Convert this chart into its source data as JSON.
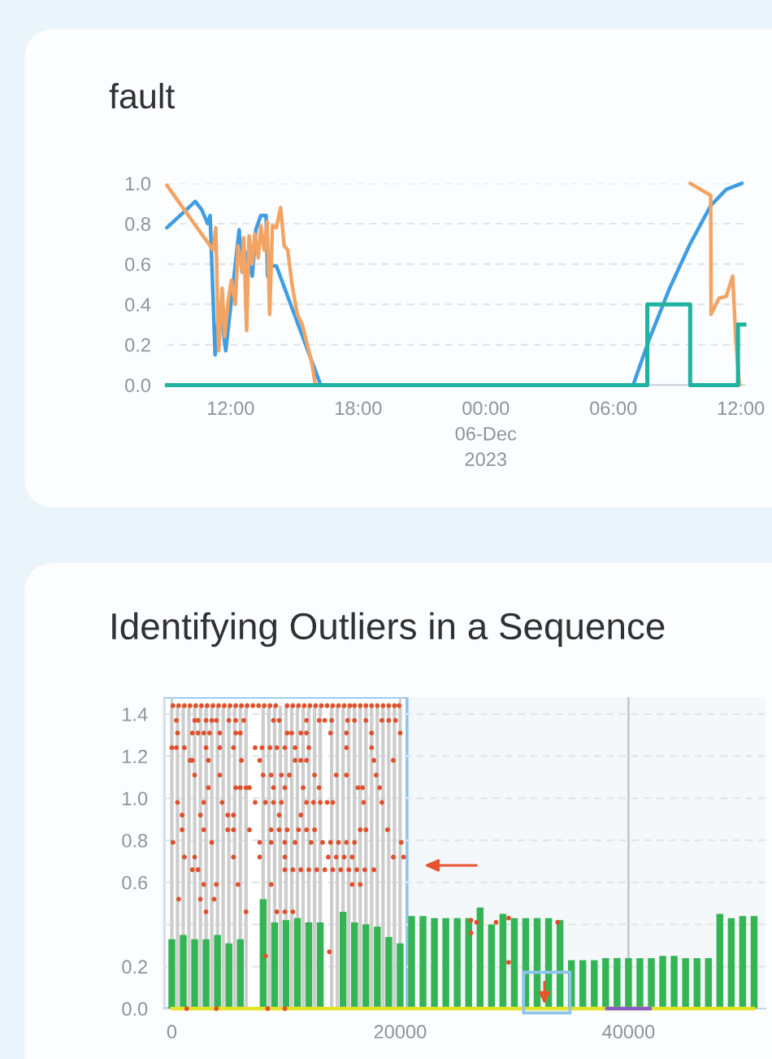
{
  "chart_data": [
    {
      "type": "line",
      "title": "fault",
      "xlim": [
        "2023-12-05T09:00",
        "2023-12-06T12:10"
      ],
      "xticks": [
        {
          "value": "2023-12-05T12:00",
          "label": "12:00"
        },
        {
          "value": "2023-12-05T18:00",
          "label": "18:00"
        },
        {
          "value": "2023-12-06T00:00",
          "label": "00:00\n06-Dec\n2023"
        },
        {
          "value": "2023-12-06T06:00",
          "label": "06:00"
        },
        {
          "value": "2023-12-06T12:00",
          "label": "12:00"
        }
      ],
      "ylim": [
        0,
        1
      ],
      "yticks": [
        {
          "value": 0,
          "label": "0.0"
        },
        {
          "value": 0.2,
          "label": "0.2"
        },
        {
          "value": 0.4,
          "label": "0.4"
        },
        {
          "value": 0.6,
          "label": "0.6"
        },
        {
          "value": 0.8,
          "label": "0.8"
        },
        {
          "value": 1,
          "label": "1.0"
        }
      ],
      "grid": "y",
      "series": [
        {
          "color": "#3e9de3",
          "x": [
            "2023-12-05T09:00",
            "2023-12-05T10:20",
            "2023-12-05T10:38",
            "2023-12-05T10:55",
            "2023-12-05T11:02",
            "2023-12-05T11:16",
            "2023-12-05T11:29",
            "2023-12-05T11:46",
            "2023-12-05T12:24",
            "2023-12-05T12:32",
            "2023-12-05T12:41",
            "2023-12-05T13:01",
            "2023-12-05T13:11",
            "2023-12-05T13:25",
            "2023-12-05T13:40",
            "2023-12-05T13:44",
            "2023-12-05T13:52",
            "2023-12-05T14:09",
            "2023-12-05T16:14",
            "2023-12-06T06:56",
            "2023-12-06T07:40",
            "2023-12-06T08:39",
            "2023-12-06T09:37",
            "2023-12-06T10:35",
            "2023-12-06T11:19",
            "2023-12-06T12:03"
          ],
          "values": [
            0.78,
            0.91,
            0.87,
            0.8,
            0.84,
            0.15,
            0.4,
            0.17,
            0.77,
            0.56,
            0.66,
            0.54,
            0.77,
            0.84,
            0.84,
            0.54,
            0.59,
            0.59,
            0,
            0,
            0.22,
            0.48,
            0.7,
            0.89,
            0.97,
            1.0
          ]
        },
        {
          "color": "#f3a464",
          "x": [
            "2023-12-05T09:00",
            "2023-12-05T11:10",
            "2023-12-05T11:18",
            "2023-12-05T11:26",
            "2023-12-05T11:36",
            "2023-12-05T11:43",
            "2023-12-05T11:53",
            "2023-12-05T12:02",
            "2023-12-05T12:13",
            "2023-12-05T12:21",
            "2023-12-05T12:32",
            "2023-12-05T12:37",
            "2023-12-05T12:45",
            "2023-12-05T12:52",
            "2023-12-05T13:01",
            "2023-12-05T13:08",
            "2023-12-05T13:18",
            "2023-12-05T13:25",
            "2023-12-05T13:34",
            "2023-12-05T13:43",
            "2023-12-05T13:50",
            "2023-12-05T13:58",
            "2023-12-05T14:09",
            "2023-12-05T14:21",
            "2023-12-05T14:31",
            "2023-12-05T14:41",
            "2023-12-05T14:53",
            "2023-12-05T15:08",
            "2023-12-05T15:22",
            "2023-12-05T15:49",
            "2023-12-05T15:59",
            "2023-12-06T00:00",
            "2023-12-06T09:37",
            "2023-12-06T10:35",
            "2023-12-06T10:36",
            "2023-12-06T10:58",
            "2023-12-06T11:19",
            "2023-12-06T11:37",
            "2023-12-06T11:46",
            "2023-12-06T11:56"
          ],
          "values": [
            0.99,
            0.67,
            0.78,
            0.17,
            0.48,
            0.24,
            0.42,
            0.52,
            0.4,
            0.69,
            0.56,
            0.73,
            0.27,
            0.74,
            0.6,
            0.75,
            0.63,
            0.79,
            0.67,
            0.81,
            0.35,
            0.79,
            0.78,
            0.88,
            0.69,
            0.67,
            0.5,
            0.35,
            0.3,
            0.11,
            0,
            null,
            1.0,
            0.94,
            0.35,
            0.43,
            0.44,
            0.54,
            0.22,
            0
          ]
        },
        {
          "type": "step",
          "color": "#1db3a0",
          "x": [
            "2023-12-05T09:00",
            "2023-12-06T07:36",
            "2023-12-06T09:37",
            "2023-12-06T11:52",
            "2023-12-06T12:10"
          ],
          "values": [
            0,
            0.4,
            0,
            0.3,
            0.3
          ]
        }
      ]
    },
    {
      "type": "line",
      "title": "Identifying Outliers in a Sequence",
      "xlim": [
        -700,
        52000
      ],
      "xticks": [
        0,
        20000,
        40000
      ],
      "ylim": [
        0,
        1.48
      ],
      "yticks": [
        {
          "value": 0,
          "label": "0.0"
        },
        {
          "value": 0.2,
          "label": "0.2"
        },
        {
          "value": 0.4,
          "label": null
        },
        {
          "value": 0.6,
          "label": "0.6"
        },
        {
          "value": 0.8,
          "label": "0.8"
        },
        {
          "value": 1.0,
          "label": "1.0"
        },
        {
          "value": 1.2,
          "label": "1.2"
        },
        {
          "value": 1.4,
          "label": "1.4"
        }
      ],
      "grid": true,
      "bands": [
        {
          "axis": "x",
          "from": -700,
          "to": 20600,
          "color": "#8fc4ec"
        }
      ],
      "series": [
        {
          "type": "bar",
          "color": "#cdcdcd",
          "x": [
            0,
            500,
            1000,
            1500,
            2000,
            2500,
            3000,
            3500,
            4000,
            4500,
            5000,
            5500,
            6000,
            6500,
            7000,
            7500,
            8000,
            8500,
            9000,
            9500,
            10000,
            10500,
            11000,
            11500,
            12000,
            12500,
            13000,
            13500,
            14000,
            14500,
            15000,
            15500,
            16000,
            16500,
            17000,
            17500,
            18000,
            18500,
            19000,
            19500,
            20000
          ],
          "values": [
            1.44,
            1.44,
            1.44,
            1.44,
            1.44,
            1.44,
            1.44,
            1.44,
            1.44,
            1.44,
            1.44,
            1.44,
            1.44,
            1.44,
            null,
            null,
            1.44,
            1.44,
            1.44,
            1.44,
            1.44,
            1.44,
            1.44,
            1.44,
            1.44,
            1.44,
            1.44,
            null,
            1.44,
            1.44,
            1.44,
            1.44,
            1.44,
            1.44,
            1.44,
            1.44,
            1.44,
            1.44,
            1.44,
            1.44,
            1.44
          ]
        },
        {
          "type": "bar",
          "color": "#34b554",
          "x": [
            0,
            1000,
            2000,
            3000,
            4000,
            5000,
            6000,
            7000,
            8000,
            9000,
            10000,
            11000,
            12000,
            13000,
            14000,
            15000,
            16000,
            17000,
            18000,
            19000,
            20000,
            21000,
            22000,
            23000,
            24000,
            25000,
            26000,
            27000,
            28000,
            29000,
            30000,
            31000,
            32000,
            33000,
            34000,
            35000,
            36000,
            37000,
            38000,
            39000,
            40000,
            41000,
            42000,
            43000,
            44000,
            45000,
            46000,
            47000,
            48000,
            49000,
            50000,
            51000
          ],
          "values": [
            0.33,
            0.35,
            0.33,
            0.33,
            0.35,
            0.31,
            0.33,
            null,
            0.52,
            0.41,
            0.42,
            0.43,
            0.41,
            0.41,
            null,
            0.46,
            0.41,
            0.4,
            0.39,
            0.34,
            0.31,
            0.44,
            0.44,
            0.43,
            0.43,
            0.43,
            0.43,
            0.48,
            0.4,
            0.45,
            0.43,
            0.43,
            0.43,
            0.43,
            0.42,
            0.23,
            0.23,
            0.23,
            0.24,
            0.24,
            0.24,
            0.24,
            0.24,
            0.25,
            0.25,
            0.24,
            0.24,
            0.24,
            0.45,
            0.43,
            0.44,
            0.44
          ]
        },
        {
          "color": "#e4e42a",
          "x": [
            0,
            51000
          ],
          "values": [
            0,
            0
          ]
        },
        {
          "color": "#8a5cc8",
          "x": [
            38100,
            41900
          ],
          "values": [
            0,
            0
          ]
        },
        {
          "type": "scatter",
          "marker": "circle",
          "color": "#e0502c",
          "x": [
            100,
            600,
            1100,
            1600,
            2100,
            2600,
            3100,
            3600,
            4100,
            4600,
            5100,
            5600,
            6100,
            6600,
            7100,
            7600,
            8100,
            8600,
            9100,
            10100,
            10600,
            11100,
            11600,
            12100,
            12600,
            13100,
            13600,
            14100,
            14600,
            15100,
            15600,
            16000,
            16500,
            17000,
            17500,
            18000,
            18500,
            19000,
            19500,
            19900,
            400,
            2000,
            2300,
            3000,
            3500,
            3900,
            5000,
            5600,
            6300,
            8900,
            9400,
            11800,
            12900,
            13400,
            14000,
            15400,
            16000,
            17000,
            18400,
            19000,
            19600,
            500,
            1800,
            2300,
            2800,
            3300,
            4200,
            5600,
            6000,
            10100,
            10500,
            11300,
            11800,
            13900,
            15300,
            17500,
            20000,
            0,
            400,
            1100,
            3000,
            4200,
            5400,
            7300,
            7900,
            8600,
            9200,
            9900,
            10800,
            12000,
            15300,
            17500,
            1600,
            1800,
            3200,
            6100,
            7700,
            10800,
            11300,
            11800,
            17700,
            19400,
            2000,
            4200,
            8000,
            8700,
            9600,
            10300,
            12500,
            14400,
            15300,
            17900,
            3200,
            5600,
            6000,
            6500,
            6800,
            8900,
            9900,
            11500,
            12900,
            16300,
            16700,
            18200,
            500,
            2800,
            4400,
            7300,
            8200,
            8900,
            9600,
            11800,
            12400,
            13000,
            13600,
            14100,
            16800,
            18400,
            900,
            2500,
            4900,
            5400,
            9400,
            11300,
            900,
            2800,
            4900,
            5400,
            6800,
            8700,
            9400,
            10100,
            11100,
            11800,
            12500,
            16500,
            17000,
            18900,
            100,
            3500,
            7700,
            8700,
            9900,
            10800,
            12200,
            13200,
            13900,
            14600,
            15300,
            16000,
            20100,
            1100,
            2000,
            5400,
            7700,
            9900,
            13700,
            14400,
            15100,
            15800,
            19400,
            20300,
            1800,
            2300,
            9900,
            10600,
            11300,
            12000,
            12700,
            13400,
            14100,
            14800,
            15500,
            16200,
            16900,
            17700,
            2800,
            3900,
            5800,
            8700,
            15800,
            16500,
            600,
            2500,
            3700,
            3000,
            6500,
            9200,
            9900,
            10600,
            13800,
            8200,
            1300,
            3900,
            8400,
            9900,
            26200,
            26200,
            26700,
            28400,
            29500,
            29500,
            33800
          ],
          "values": [
            1.44,
            1.44,
            1.44,
            1.44,
            1.44,
            1.44,
            1.44,
            1.44,
            1.44,
            1.44,
            1.44,
            1.44,
            1.44,
            1.44,
            1.44,
            1.44,
            1.44,
            1.44,
            1.44,
            1.44,
            1.44,
            1.44,
            1.44,
            1.44,
            1.44,
            1.44,
            1.44,
            1.44,
            1.44,
            1.44,
            1.44,
            1.44,
            1.44,
            1.44,
            1.44,
            1.44,
            1.44,
            1.44,
            1.44,
            1.44,
            1.37,
            1.37,
            1.37,
            1.37,
            1.37,
            1.37,
            1.37,
            1.37,
            1.37,
            1.37,
            1.37,
            1.37,
            1.37,
            1.37,
            1.37,
            1.37,
            1.37,
            1.37,
            1.37,
            1.37,
            1.37,
            1.31,
            1.31,
            1.31,
            1.31,
            1.31,
            1.31,
            1.31,
            1.31,
            1.31,
            1.31,
            1.31,
            1.31,
            1.31,
            1.31,
            1.31,
            1.31,
            1.24,
            1.24,
            1.24,
            1.24,
            1.24,
            1.24,
            1.24,
            1.24,
            1.24,
            1.24,
            1.24,
            1.24,
            1.24,
            1.24,
            1.24,
            1.18,
            1.18,
            1.18,
            1.18,
            1.18,
            1.18,
            1.18,
            1.18,
            1.18,
            1.18,
            1.11,
            1.11,
            1.11,
            1.11,
            1.11,
            1.11,
            1.11,
            1.11,
            1.11,
            1.11,
            1.05,
            1.05,
            1.05,
            1.05,
            1.05,
            1.05,
            1.05,
            1.05,
            1.05,
            1.05,
            1.05,
            1.05,
            0.98,
            0.98,
            0.98,
            0.98,
            0.98,
            0.98,
            0.98,
            0.98,
            0.98,
            0.98,
            0.98,
            0.98,
            0.98,
            0.98,
            0.92,
            0.92,
            0.92,
            0.92,
            0.92,
            0.92,
            0.85,
            0.85,
            0.85,
            0.85,
            0.85,
            0.85,
            0.85,
            0.85,
            0.85,
            0.85,
            0.85,
            0.85,
            0.85,
            0.85,
            0.79,
            0.79,
            0.79,
            0.79,
            0.79,
            0.79,
            0.79,
            0.79,
            0.79,
            0.79,
            0.79,
            0.79,
            0.79,
            0.72,
            0.72,
            0.72,
            0.72,
            0.72,
            0.72,
            0.72,
            0.72,
            0.72,
            0.72,
            0.72,
            0.66,
            0.66,
            0.66,
            0.66,
            0.66,
            0.66,
            0.66,
            0.66,
            0.66,
            0.66,
            0.66,
            0.66,
            0.66,
            0.66,
            0.59,
            0.59,
            0.59,
            0.59,
            0.59,
            0.59,
            0.52,
            0.52,
            0.52,
            0.46,
            0.46,
            0.46,
            0.46,
            0.46,
            0.27,
            0.25,
            0,
            0,
            0,
            0,
            0.42,
            0.36,
            0.41,
            0.41,
            0.43,
            0.22,
            0.41
          ]
        }
      ]
    }
  ]
}
